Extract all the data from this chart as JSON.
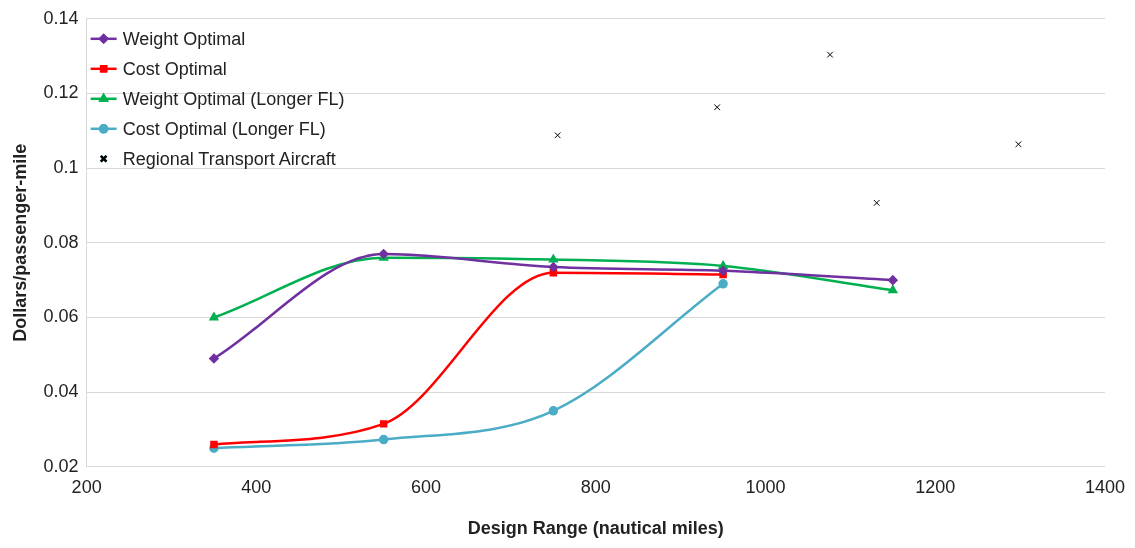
{
  "chart_data": {
    "type": "line",
    "xlabel": "Design Range (nautical miles)",
    "ylabel": "Dollars/passenger-mile",
    "xlim": [
      200,
      1400
    ],
    "xticks": [
      200,
      400,
      600,
      800,
      1000,
      1200,
      1400
    ],
    "ylim": [
      0.02,
      0.14
    ],
    "yticks": [
      0.02,
      0.04,
      0.06,
      0.08,
      0.1,
      0.12,
      0.14
    ],
    "grid": "y",
    "legend": "top left",
    "series": [
      {
        "name": "Weight Optimal",
        "color": "#7030a0",
        "marker": "diamond",
        "x": [
          350,
          550,
          750,
          950,
          1150
        ],
        "values": [
          0.049,
          0.077,
          0.0735,
          0.0725,
          0.07
        ]
      },
      {
        "name": "Cost Optimal",
        "color": "#ff0000",
        "marker": "square",
        "x": [
          350,
          550,
          750,
          950
        ],
        "values": [
          0.026,
          0.0315,
          0.072,
          0.0715
        ]
      },
      {
        "name": "Weight Optimal (Longer FL)",
        "color": "#00b050",
        "marker": "triangle",
        "x": [
          350,
          550,
          750,
          950,
          1150
        ],
        "values": [
          0.06,
          0.076,
          0.0755,
          0.0738,
          0.0673
        ]
      },
      {
        "name": "Cost Optimal (Longer FL)",
        "color": "#4bacc6",
        "marker": "circle",
        "x": [
          350,
          550,
          750,
          950
        ],
        "values": [
          0.025,
          0.0273,
          0.035,
          0.069
        ]
      },
      {
        "name": "Regional Transport Aircraft",
        "type": "scatter",
        "color": "#000000",
        "marker": "cross",
        "x": [
          755,
          943,
          1076,
          1131,
          1298
        ],
        "values": [
          0.1088,
          0.1163,
          0.1304,
          0.0907,
          0.1064
        ]
      }
    ]
  }
}
